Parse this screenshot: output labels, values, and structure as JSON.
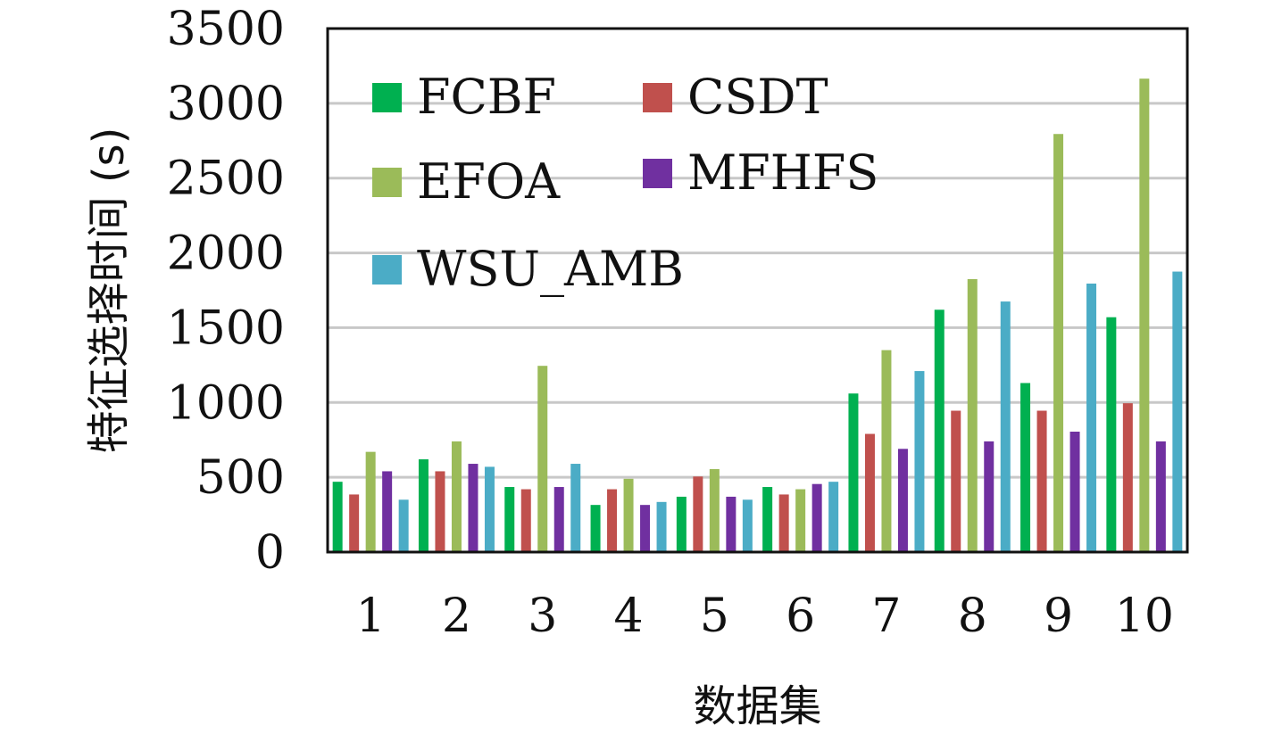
{
  "chart_data": {
    "type": "bar",
    "title": "",
    "xlabel": "数据集",
    "ylabel": "特征选择时间 (s)",
    "categories": [
      "1",
      "2",
      "3",
      "4",
      "5",
      "6",
      "7",
      "8",
      "9",
      "10"
    ],
    "ylim": [
      0,
      3500
    ],
    "yticks": [
      0,
      500,
      1000,
      1500,
      2000,
      2500,
      3000,
      3500
    ],
    "grid": true,
    "legend_position": "top-left",
    "series": [
      {
        "name": "FCBF",
        "color": "#00b050",
        "values": [
          470,
          620,
          435,
          315,
          370,
          435,
          1060,
          1620,
          1130,
          1570
        ]
      },
      {
        "name": "CSDT",
        "color": "#c0504d",
        "values": [
          385,
          540,
          420,
          420,
          505,
          385,
          790,
          945,
          945,
          995
        ]
      },
      {
        "name": "EFOA",
        "color": "#9bbb59",
        "values": [
          670,
          740,
          1245,
          490,
          555,
          420,
          1350,
          1825,
          2795,
          3165
        ]
      },
      {
        "name": "MFHFS",
        "color": "#7030a0",
        "values": [
          540,
          590,
          435,
          315,
          370,
          455,
          690,
          740,
          805,
          740
        ]
      },
      {
        "name": "WSU_AMB",
        "color": "#4bacc6",
        "values": [
          350,
          570,
          590,
          335,
          350,
          470,
          1210,
          1675,
          1795,
          1875
        ]
      }
    ]
  }
}
